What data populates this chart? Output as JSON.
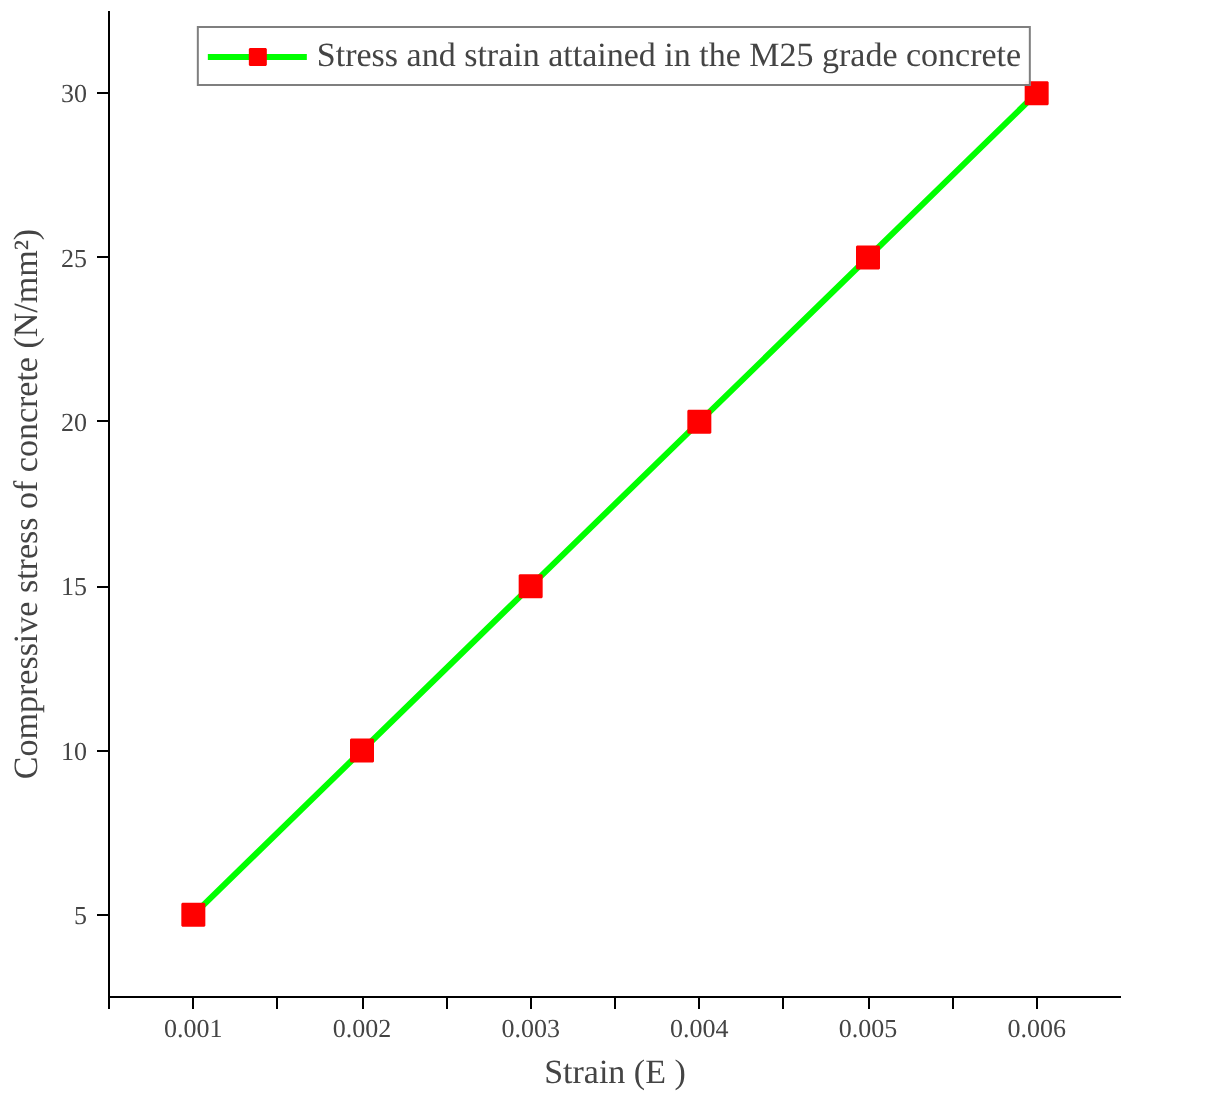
{
  "chart_data": {
    "type": "line",
    "xlabel": "Strain (E )",
    "ylabel": "Compressive stress of concrete (N/mm²)",
    "x": [
      0.001,
      0.002,
      0.003,
      0.004,
      0.005,
      0.006
    ],
    "series": [
      {
        "name": "Stress and strain attained in the M25 grade concrete",
        "color": "#00ff00",
        "colors": [
          "#ff0000",
          "#ff0000",
          "#ff0000",
          "#ff0000",
          "#ff0000",
          "#ff0000"
        ],
        "values": [
          5,
          10,
          15,
          20,
          25,
          30
        ]
      }
    ],
    "xlim": [
      0.0005,
      0.0065
    ],
    "ylim": [
      2.5,
      32.5
    ],
    "xticks": [
      {
        "value": 0.0005,
        "label": null
      },
      0.001,
      {
        "value": 0.0015,
        "label": null
      },
      0.002,
      {
        "value": 0.0025,
        "label": null
      },
      0.003,
      {
        "value": 0.0035,
        "label": null
      },
      0.004,
      {
        "value": 0.0045,
        "label": null
      },
      0.005,
      {
        "value": 0.0055,
        "label": null
      },
      0.006
    ],
    "yticks": [
      5,
      10,
      15,
      20,
      25,
      30
    ],
    "grid": false,
    "legend": "top",
    "marker": "square",
    "line_style": "solid"
  }
}
